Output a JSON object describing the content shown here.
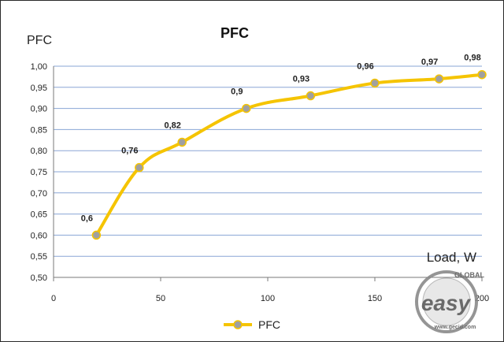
{
  "chart_data": {
    "type": "line",
    "title": "PFC",
    "ylabel": "PFC",
    "xlabel": "Load, W",
    "xlim": [
      0,
      200
    ],
    "ylim": [
      0.5,
      1.0
    ],
    "x_ticks": [
      "0",
      "50",
      "100",
      "150",
      "200"
    ],
    "y_ticks": [
      "0,50",
      "0,55",
      "0,60",
      "0,65",
      "0,70",
      "0,75",
      "0,80",
      "0,85",
      "0,90",
      "0,95",
      "1,00"
    ],
    "grid": true,
    "legend_position": "bottom",
    "series": [
      {
        "name": "PFC",
        "color": "#f5c400",
        "marker_color": "#a0a0a0",
        "points": [
          {
            "x": 20,
            "y": 0.6,
            "label": "0,6"
          },
          {
            "x": 40,
            "y": 0.76,
            "label": "0,76"
          },
          {
            "x": 60,
            "y": 0.82,
            "label": "0,82"
          },
          {
            "x": 90,
            "y": 0.9,
            "label": "0,9"
          },
          {
            "x": 120,
            "y": 0.93,
            "label": "0,93"
          },
          {
            "x": 150,
            "y": 0.96,
            "label": "0,96"
          },
          {
            "x": 180,
            "y": 0.97,
            "label": "0,97"
          },
          {
            "x": 200,
            "y": 0.98,
            "label": "0,98"
          }
        ]
      }
    ]
  },
  "watermark": {
    "main": "easy",
    "ring": "GLOBAL",
    "url": "www.gecid.com"
  }
}
